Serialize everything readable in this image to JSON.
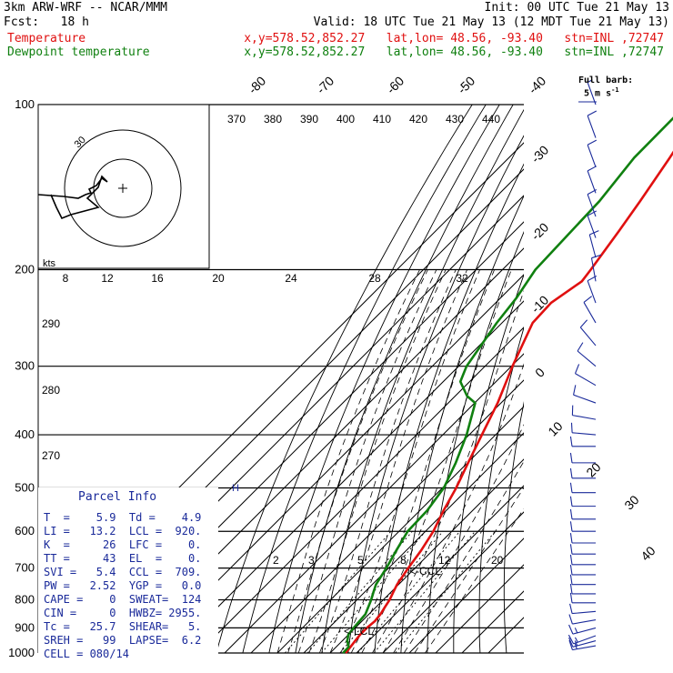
{
  "header": {
    "model": "3km ARW-WRF -- NCAR/MMM",
    "init": "Init: 00 UTC Tue 21 May 13",
    "fcst": "Fcst:   18 h",
    "valid": "Valid: 18 UTC Tue 21 May 13 (12 MDT Tue 21 May 13)",
    "temp_label": "Temperature",
    "temp_info": "x,y=578.52,852.27   lat,lon= 48.56, -93.40   stn=INL ,72747",
    "dew_label": "Dewpoint temperature",
    "dew_info": "x,y=578.52,852.27   lat,lon= 48.56, -93.40   stn=INL ,72747"
  },
  "full_barb": "Full barb:",
  "full_barb_units": "5 m s",
  "colors": {
    "temperature": "#e01010",
    "dewpoint": "#108010",
    "info": "#1a2a9a",
    "wind": "#1a2a9a"
  },
  "parcel_info": {
    "title": "Parcel Info",
    "rows": [
      "T  =    5.9  Td =    4.9",
      "LI =   13.2  LCL =  920.",
      "K  =     26  LFC =    0.",
      "TT =     43  EL  =    0.",
      "SVI =   5.4  CCL =  709.",
      "PW =   2.52  YGP =   0.0",
      "CAPE =    0  SWEAT=  124",
      "CIN =     0  HWBZ= 2955.",
      "Tc =   25.7  SHEAR=   5.",
      "SREH =   99  LAPSE=  6.2",
      "CELL = 080/14"
    ]
  },
  "chart_data": {
    "type": "line",
    "title": "",
    "pressure_levels": [
      "100",
      "200",
      "300",
      "400",
      "500",
      "600",
      "700",
      "800",
      "900",
      "1000"
    ],
    "isotherm_labels": [
      "-80",
      "-70",
      "-60",
      "-50",
      "-40",
      "-30",
      "-20",
      "-10",
      "0",
      "10",
      "20",
      "30",
      "40"
    ],
    "theta_labels": [
      "370",
      "380",
      "390",
      "400",
      "410",
      "420",
      "430",
      "440"
    ],
    "theta_left_labels": [
      "290",
      "280",
      "270"
    ],
    "mixing_ratio_labels": [
      "2",
      "3",
      "5",
      "8",
      "12",
      "20"
    ],
    "hodograph": {
      "unit": "kts",
      "ring_labels": [
        "8",
        "12",
        "16",
        "20",
        "24",
        "28",
        "32"
      ],
      "inner_label": "30"
    },
    "markers": [
      "<-CCL",
      "<-LCL",
      "H"
    ],
    "series": [
      {
        "name": "Temperature",
        "points": [
          [
            1000,
            5.9
          ],
          [
            975,
            5.4
          ],
          [
            950,
            4.9
          ],
          [
            925,
            4.4
          ],
          [
            900,
            4.4
          ],
          [
            875,
            4.9
          ],
          [
            850,
            4.4
          ],
          [
            825,
            3.4
          ],
          [
            800,
            2.4
          ],
          [
            775,
            0.9
          ],
          [
            750,
            -0.6
          ],
          [
            700,
            -2.6
          ],
          [
            650,
            -4.4
          ],
          [
            600,
            -7.0
          ],
          [
            550,
            -11.0
          ],
          [
            500,
            -14.8
          ],
          [
            450,
            -19.8
          ],
          [
            400,
            -25.2
          ],
          [
            350,
            -31.3
          ],
          [
            300,
            -39.6
          ],
          [
            250,
            -48.4
          ],
          [
            230,
            -49.0
          ],
          [
            210,
            -45.5
          ],
          [
            200,
            -46.5
          ],
          [
            170,
            -50.5
          ],
          [
            150,
            -53.8
          ],
          [
            125,
            -59.0
          ],
          [
            100,
            -66.0
          ]
        ]
      },
      {
        "name": "Dewpoint temperature",
        "points": [
          [
            1000,
            4.9
          ],
          [
            975,
            4.7
          ],
          [
            950,
            1.9
          ],
          [
            925,
            -0.1
          ],
          [
            900,
            -0.6
          ],
          [
            850,
            -1.3
          ],
          [
            800,
            -4.6
          ],
          [
            775,
            -6.6
          ],
          [
            750,
            -8.6
          ],
          [
            700,
            -10.9
          ],
          [
            650,
            -13.8
          ],
          [
            600,
            -16.7
          ],
          [
            550,
            -17.2
          ],
          [
            500,
            -19.5
          ],
          [
            450,
            -24.5
          ],
          [
            400,
            -31.0
          ],
          [
            350,
            -39.8
          ],
          [
            340,
            -45.5
          ],
          [
            320,
            -53.5
          ],
          [
            300,
            -57.0
          ],
          [
            250,
            -62.0
          ],
          [
            225,
            -64.0
          ],
          [
            200,
            -67.5
          ],
          [
            170,
            -68.5
          ],
          [
            150,
            -69.2
          ],
          [
            125,
            -72.5
          ],
          [
            100,
            -72.8
          ]
        ]
      }
    ],
    "wind_barbs": [
      {
        "p": 970,
        "dir": 260,
        "spd": 15
      },
      {
        "p": 950,
        "dir": 255,
        "spd": 15
      },
      {
        "p": 930,
        "dir": 250,
        "spd": 15
      },
      {
        "p": 900,
        "dir": 255,
        "spd": 15
      },
      {
        "p": 870,
        "dir": 260,
        "spd": 10
      },
      {
        "p": 840,
        "dir": 265,
        "spd": 10
      },
      {
        "p": 810,
        "dir": 270,
        "spd": 10
      },
      {
        "p": 780,
        "dir": 270,
        "spd": 10
      },
      {
        "p": 750,
        "dir": 270,
        "spd": 10
      },
      {
        "p": 720,
        "dir": 270,
        "spd": 10
      },
      {
        "p": 690,
        "dir": 270,
        "spd": 10
      },
      {
        "p": 660,
        "dir": 270,
        "spd": 10
      },
      {
        "p": 630,
        "dir": 270,
        "spd": 10
      },
      {
        "p": 600,
        "dir": 270,
        "spd": 10
      },
      {
        "p": 570,
        "dir": 270,
        "spd": 10
      },
      {
        "p": 540,
        "dir": 270,
        "spd": 10
      },
      {
        "p": 510,
        "dir": 270,
        "spd": 10
      },
      {
        "p": 480,
        "dir": 270,
        "spd": 10
      },
      {
        "p": 450,
        "dir": 270,
        "spd": 10
      },
      {
        "p": 420,
        "dir": 270,
        "spd": 10
      },
      {
        "p": 400,
        "dir": 275,
        "spd": 10
      },
      {
        "p": 375,
        "dir": 280,
        "spd": 10
      },
      {
        "p": 350,
        "dir": 290,
        "spd": 10
      },
      {
        "p": 325,
        "dir": 300,
        "spd": 10
      },
      {
        "p": 300,
        "dir": 310,
        "spd": 10
      },
      {
        "p": 275,
        "dir": 320,
        "spd": 10
      },
      {
        "p": 250,
        "dir": 330,
        "spd": 10
      },
      {
        "p": 230,
        "dir": 340,
        "spd": 10
      },
      {
        "p": 210,
        "dir": 350,
        "spd": 10
      },
      {
        "p": 190,
        "dir": 345,
        "spd": 10
      },
      {
        "p": 175,
        "dir": 340,
        "spd": 10
      },
      {
        "p": 160,
        "dir": 340,
        "spd": 10
      },
      {
        "p": 145,
        "dir": 340,
        "spd": 10
      },
      {
        "p": 130,
        "dir": 340,
        "spd": 10
      },
      {
        "p": 115,
        "dir": 340,
        "spd": 10
      },
      {
        "p": 100,
        "dir": 340,
        "spd": 5
      }
    ]
  }
}
